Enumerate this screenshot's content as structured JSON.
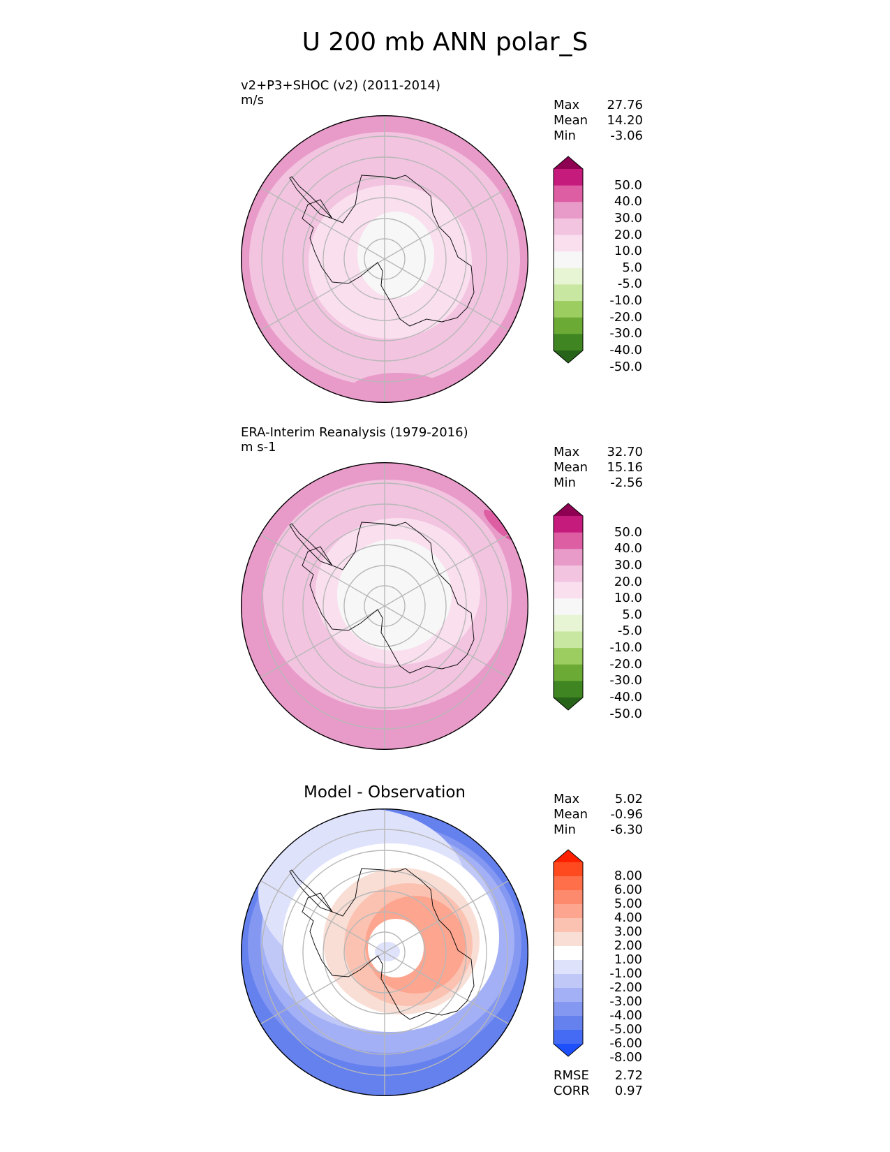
{
  "title": "U 200 mb ANN polar_S",
  "chart_data": [
    {
      "type": "polar-contour-map",
      "title": "v2+P3+SHOC (v2) (2011-2014)",
      "units": "m/s",
      "stats": [
        {
          "label": "Max",
          "value": "27.76"
        },
        {
          "label": "Mean",
          "value": "14.20"
        },
        {
          "label": "Min",
          "value": "-3.06"
        }
      ],
      "colorbar": {
        "ticks": [
          "50.0",
          "40.0",
          "30.0",
          "20.0",
          "10.0",
          "5.0",
          "-5.0",
          "-10.0",
          "-20.0",
          "-30.0",
          "-40.0",
          "-50.0"
        ],
        "colors": [
          "#8e0152",
          "#c51b7d",
          "#de5ea3",
          "#e89ac8",
          "#f2c4e0",
          "#fae0ef",
          "#f7f7f7",
          "#e8f5d4",
          "#c8e7a0",
          "#9ccd60",
          "#6aaa35",
          "#3f8623",
          "#276419"
        ]
      }
    },
    {
      "type": "polar-contour-map",
      "title": "ERA-Interim Reanalysis (1979-2016)",
      "units": "m s-1",
      "stats": [
        {
          "label": "Max",
          "value": "32.70"
        },
        {
          "label": "Mean",
          "value": "15.16"
        },
        {
          "label": "Min",
          "value": "-2.56"
        }
      ],
      "colorbar": {
        "ticks": [
          "50.0",
          "40.0",
          "30.0",
          "20.0",
          "10.0",
          "5.0",
          "-5.0",
          "-10.0",
          "-20.0",
          "-30.0",
          "-40.0",
          "-50.0"
        ],
        "colors": [
          "#8e0152",
          "#c51b7d",
          "#de5ea3",
          "#e89ac8",
          "#f2c4e0",
          "#fae0ef",
          "#f7f7f7",
          "#e8f5d4",
          "#c8e7a0",
          "#9ccd60",
          "#6aaa35",
          "#3f8623",
          "#276419"
        ]
      }
    },
    {
      "type": "polar-contour-map",
      "title": "Model - Observation",
      "stats": [
        {
          "label": "Max",
          "value": "5.02"
        },
        {
          "label": "Mean",
          "value": "-0.96"
        },
        {
          "label": "Min",
          "value": "-6.30"
        }
      ],
      "colorbar": {
        "ticks": [
          "8.00",
          "6.00",
          "5.00",
          "4.00",
          "3.00",
          "2.00",
          "1.00",
          "-1.00",
          "-2.00",
          "-3.00",
          "-4.00",
          "-5.00",
          "-6.00",
          "-8.00"
        ],
        "colors": [
          "#ff2000",
          "#ff4a1f",
          "#ff6f4a",
          "#fe8a6d",
          "#fda58f",
          "#fbc2b2",
          "#f8ded5",
          "#ffffff",
          "#dfe2fb",
          "#c0c8f8",
          "#a3b0f5",
          "#8497f1",
          "#6581ee",
          "#456bf5",
          "#1e4ffc"
        ]
      },
      "rmse": {
        "label": "RMSE",
        "value": "2.72"
      },
      "corr": {
        "label": "CORR",
        "value": "0.97"
      }
    }
  ]
}
